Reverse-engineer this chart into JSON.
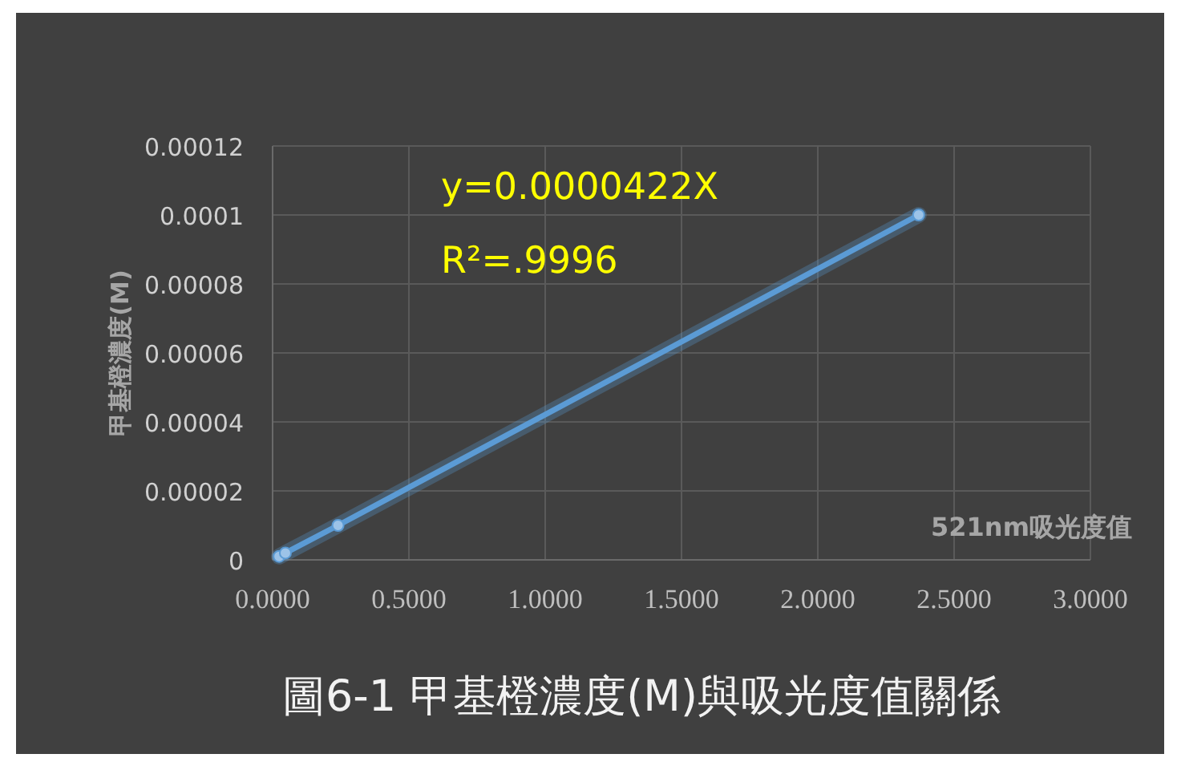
{
  "chart_data": {
    "type": "line",
    "title": "圖6-1  甲基橙濃度(M)與吸光度值關係",
    "xlabel": "521nm吸光度值",
    "ylabel": "甲基橙濃度(M)",
    "annotations": [
      "y=0.0000422X",
      "R²=.9996"
    ],
    "x": [
      0.024,
      0.047,
      0.24,
      2.37
    ],
    "series": [
      {
        "color": "#5b9bd5",
        "values": [
          1e-06,
          2e-06,
          1e-05,
          0.0001
        ]
      }
    ],
    "xlim": [
      0,
      3
    ],
    "xticks": [
      {
        "value": 0,
        "label": "0.0000"
      },
      {
        "value": 0.5,
        "label": "0.5000"
      },
      {
        "value": 1,
        "label": "1.0000"
      },
      {
        "value": 1.5,
        "label": "1.5000"
      },
      {
        "value": 2,
        "label": "2.0000"
      },
      {
        "value": 2.5,
        "label": "2.5000"
      },
      {
        "value": 3,
        "label": "3.0000"
      }
    ],
    "ylim": [
      0,
      0.00012
    ],
    "yticks": [
      0,
      {
        "value": 2e-05,
        "label": "0.00002"
      },
      {
        "value": 4e-05,
        "label": "0.00004"
      },
      {
        "value": 6e-05,
        "label": "0.00006"
      },
      {
        "value": 8e-05,
        "label": "0.00008"
      },
      0.0001,
      0.00012
    ],
    "grid": true,
    "marker": "circle",
    "line_style": "solid"
  }
}
